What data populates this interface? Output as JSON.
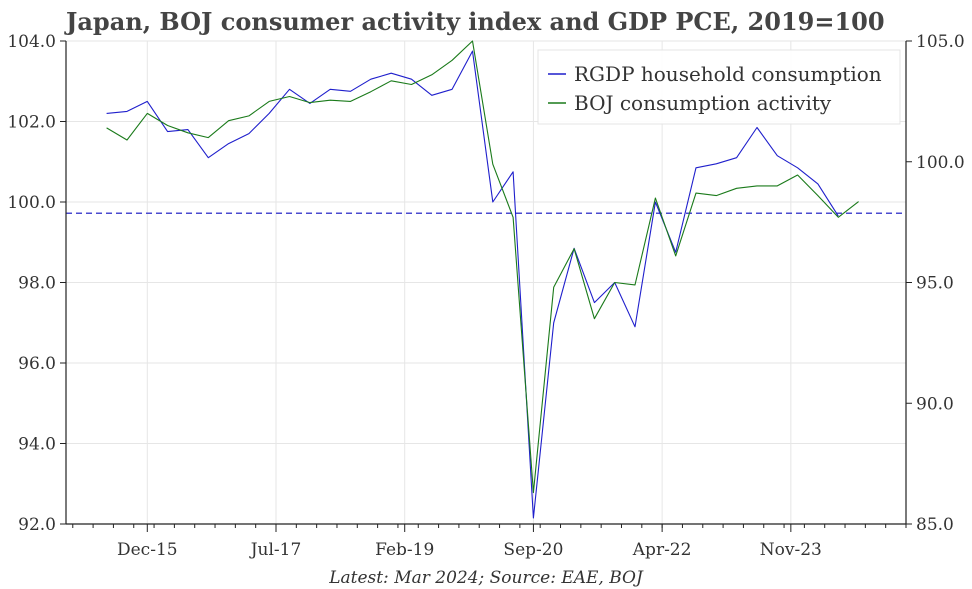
{
  "chart_data": {
    "type": "line",
    "title": "Japan, BOJ consumer activity index and GDP PCE, 2019=100",
    "source": "Latest: Mar 2024; Source: EAE, BOJ",
    "x_tick_labels": [
      "Dec-15",
      "Jul-17",
      "Feb-19",
      "Sep-20",
      "Apr-22",
      "Nov-23"
    ],
    "x_tick_values": [
      8,
      27,
      46,
      65,
      84,
      103
    ],
    "x_minor_step": 3,
    "xlim": [
      -4,
      120
    ],
    "left_axis": {
      "ylim": [
        92,
        104
      ],
      "ticks": [
        "92.0",
        "94.0",
        "96.0",
        "98.0",
        "100.0",
        "102.0",
        "104.0"
      ]
    },
    "right_axis": {
      "ylim": [
        85,
        105
      ],
      "ticks": [
        "85.0",
        "90.0",
        "95.0",
        "100.0",
        "105.0"
      ]
    },
    "grid": true,
    "legend_placement": "top-right",
    "reference_line": {
      "axis": "left",
      "value": 99.72,
      "color": "#4a4acf",
      "style": "dashed"
    },
    "series": [
      {
        "name": "RGDP household consumption",
        "axis": "left",
        "color": "#1f1fcc",
        "x": [
          2,
          5,
          8,
          11,
          14,
          17,
          20,
          23,
          26,
          29,
          32,
          35,
          38,
          41,
          44,
          47,
          50,
          53,
          56,
          59,
          62,
          65,
          68,
          71,
          74,
          77,
          80,
          83,
          86,
          89,
          92,
          95,
          98,
          101,
          104,
          107,
          110,
          113,
          116
        ],
        "values": [
          102.2,
          102.25,
          102.5,
          101.75,
          101.8,
          101.1,
          101.45,
          101.7,
          102.2,
          102.8,
          102.45,
          102.8,
          102.75,
          103.05,
          103.2,
          103.05,
          102.65,
          102.8,
          103.75,
          100.0,
          100.75,
          92.15,
          97.0,
          98.85,
          97.5,
          98.0,
          96.9,
          100.0,
          98.75,
          100.85,
          100.95,
          101.1,
          101.85,
          101.15,
          100.85,
          100.45,
          99.65,
          null,
          null
        ]
      },
      {
        "name": "BOJ consumption activity",
        "axis": "right",
        "color": "#1a7a1a",
        "x": [
          2,
          5,
          8,
          11,
          14,
          17,
          20,
          23,
          26,
          29,
          32,
          35,
          38,
          41,
          44,
          47,
          50,
          53,
          56,
          59,
          62,
          65,
          68,
          71,
          74,
          77,
          80,
          83,
          86,
          89,
          92,
          95,
          98,
          101,
          104,
          107,
          110,
          113,
          116
        ],
        "values": [
          101.4,
          100.9,
          102.0,
          101.5,
          101.2,
          101.0,
          101.7,
          101.9,
          102.5,
          102.7,
          102.45,
          102.55,
          102.5,
          102.9,
          103.35,
          103.2,
          103.6,
          104.2,
          105.0,
          99.9,
          97.7,
          86.3,
          94.8,
          96.4,
          93.5,
          95.0,
          94.9,
          98.5,
          96.1,
          98.7,
          98.6,
          98.9,
          99.0,
          99.0,
          99.45,
          98.6,
          97.7,
          98.35,
          null
        ]
      }
    ]
  }
}
